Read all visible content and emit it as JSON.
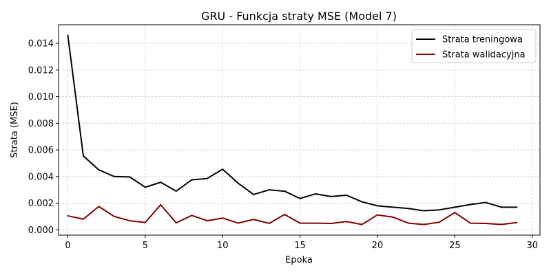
{
  "chart_data": {
    "type": "line",
    "title": "GRU - Funkcja straty MSE (Model 7)",
    "xlabel": "Epoka",
    "ylabel": "Strata (MSE)",
    "xlim": [
      -0.6,
      30.5
    ],
    "ylim": [
      -0.0004,
      0.0154
    ],
    "x_ticks": [
      0,
      5,
      10,
      15,
      20,
      25,
      30
    ],
    "x_tick_labels": [
      "0",
      "5",
      "10",
      "15",
      "20",
      "25",
      "30"
    ],
    "y_ticks": [
      0.0,
      0.002,
      0.004,
      0.006,
      0.008,
      0.01,
      0.012,
      0.014
    ],
    "y_tick_labels": [
      "0.000",
      "0.002",
      "0.004",
      "0.006",
      "0.008",
      "0.010",
      "0.012",
      "0.014"
    ],
    "grid": true,
    "legend_position": "top-right",
    "x": [
      0,
      1,
      2,
      3,
      4,
      5,
      6,
      7,
      8,
      9,
      10,
      11,
      12,
      13,
      14,
      15,
      16,
      17,
      18,
      19,
      20,
      21,
      22,
      23,
      24,
      25,
      26,
      27,
      28,
      29
    ],
    "series": [
      {
        "name": "Strata treningowa",
        "color": "#000000",
        "values": [
          0.0146,
          0.00555,
          0.0045,
          0.004,
          0.00397,
          0.0032,
          0.00357,
          0.0029,
          0.00375,
          0.00385,
          0.00455,
          0.0035,
          0.00265,
          0.003,
          0.0029,
          0.00235,
          0.0027,
          0.0025,
          0.0026,
          0.0021,
          0.0018,
          0.0017,
          0.0016,
          0.00143,
          0.0015,
          0.0017,
          0.0019,
          0.00205,
          0.0017,
          0.0017
        ]
      },
      {
        "name": "Strata walidacyjna",
        "color": "#800000",
        "values": [
          0.00105,
          0.0008,
          0.00175,
          0.001,
          0.00068,
          0.00055,
          0.00188,
          0.00052,
          0.00108,
          0.00068,
          0.00088,
          0.0005,
          0.00078,
          0.00048,
          0.00115,
          0.0005,
          0.0005,
          0.00048,
          0.00062,
          0.0004,
          0.00112,
          0.00095,
          0.0005,
          0.0004,
          0.00057,
          0.0013,
          0.0005,
          0.00048,
          0.0004,
          0.00054
        ]
      }
    ]
  }
}
